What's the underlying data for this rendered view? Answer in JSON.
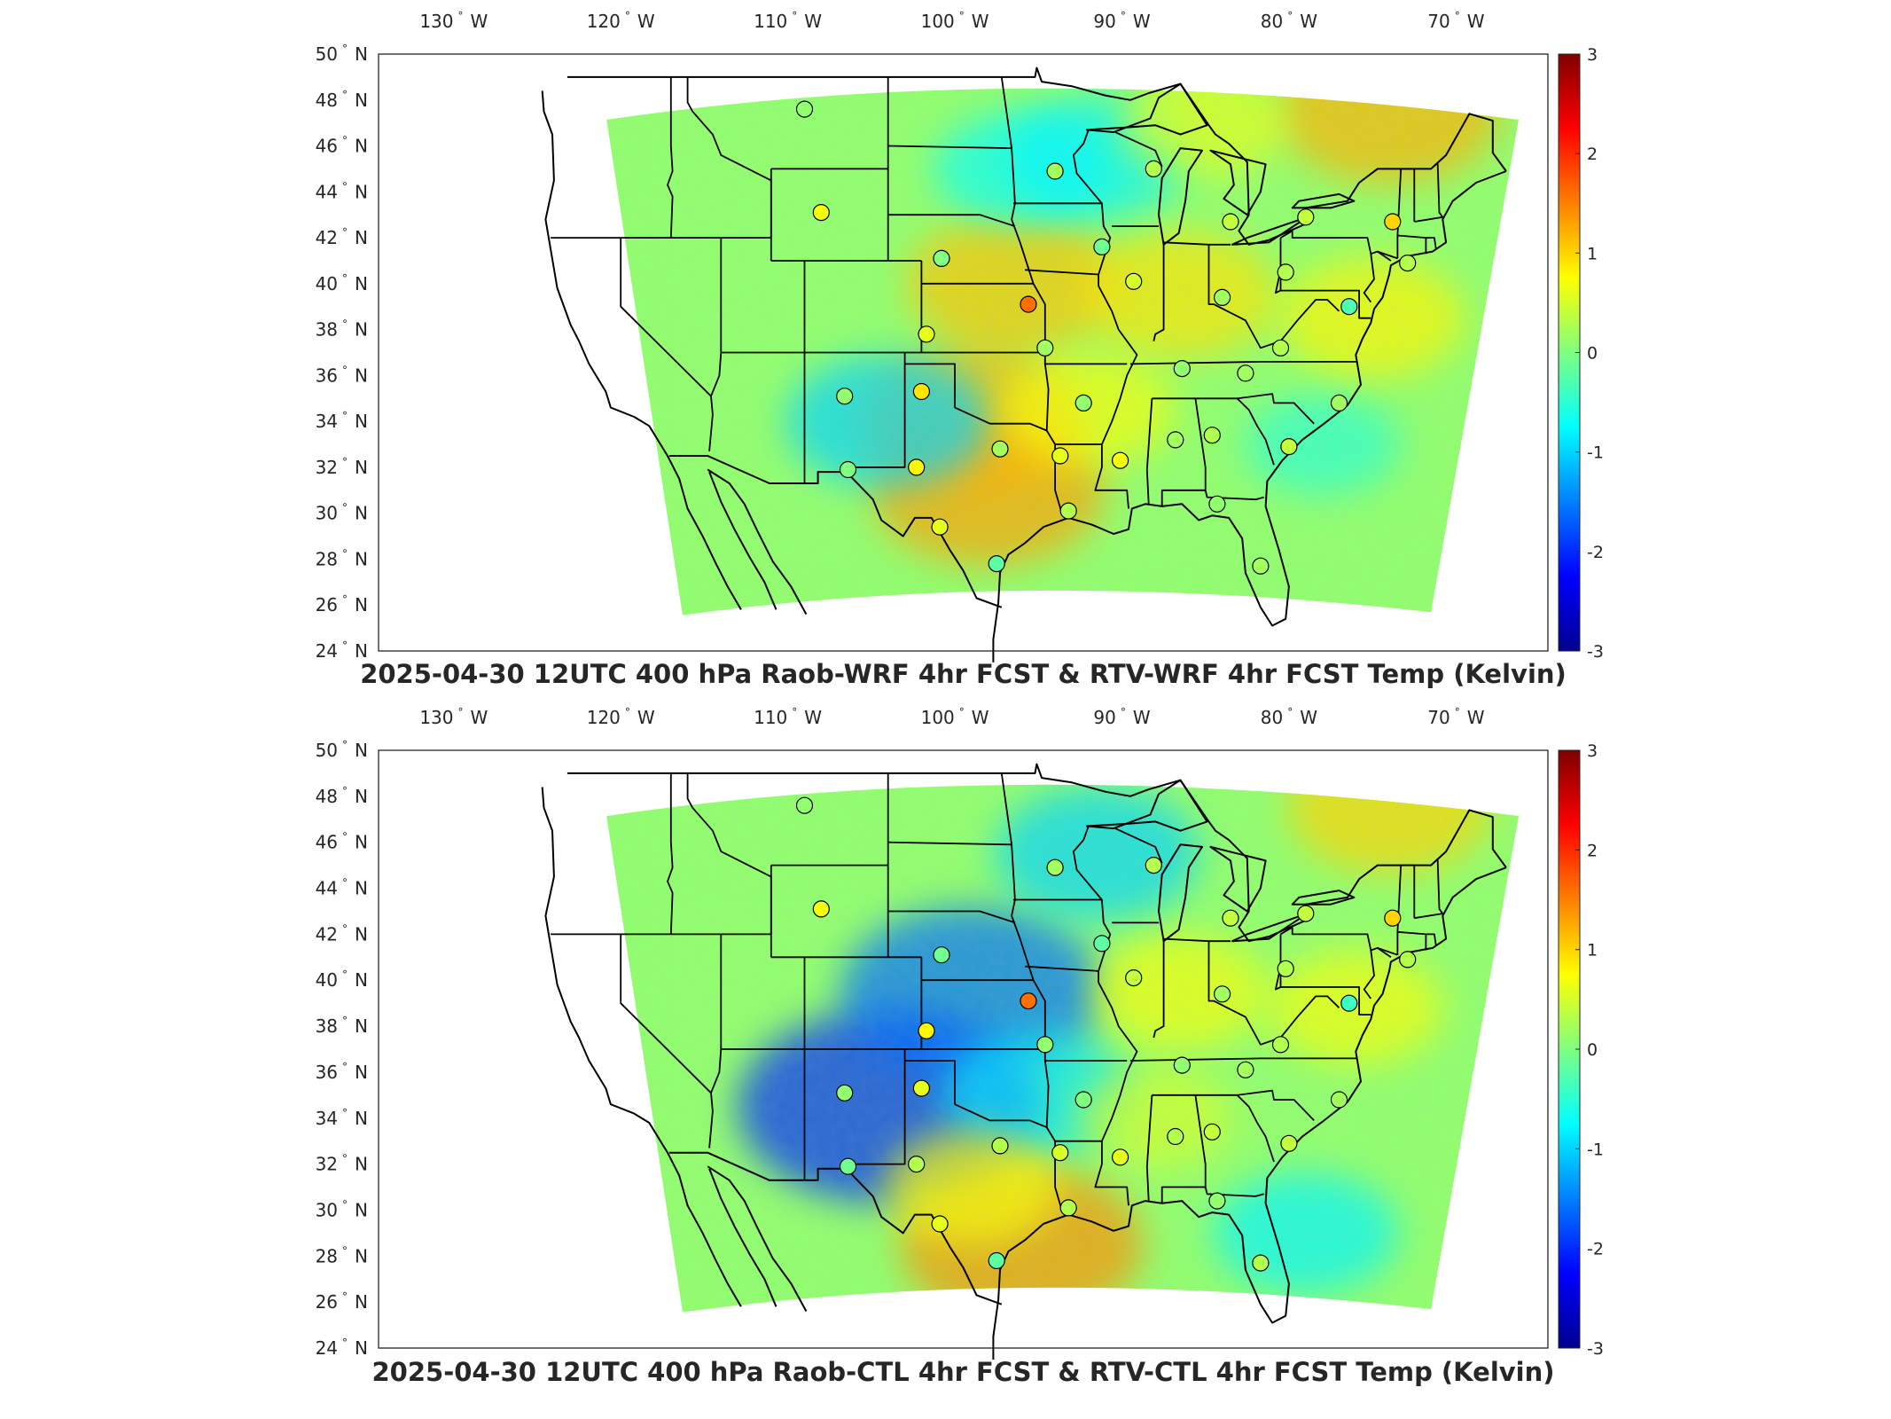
{
  "panels": [
    {
      "title": "2025-04-30 12UTC 400 hPa Raob-WRF 4hr FCST & RTV-WRF 4hr FCST Temp (Kelvin)",
      "lon_ticks": [
        {
          "value": -130,
          "label": "130",
          "hemi": "W"
        },
        {
          "value": -120,
          "label": "120",
          "hemi": "W"
        },
        {
          "value": -110,
          "label": "110",
          "hemi": "W"
        },
        {
          "value": -100,
          "label": "100",
          "hemi": "W"
        },
        {
          "value": -90,
          "label": "90",
          "hemi": "W"
        },
        {
          "value": -80,
          "label": "80",
          "hemi": "W"
        },
        {
          "value": -70,
          "label": "70",
          "hemi": "W"
        }
      ],
      "lat_ticks": [
        {
          "value": 50,
          "label": "50",
          "hemi": "N"
        },
        {
          "value": 48,
          "label": "48",
          "hemi": "N"
        },
        {
          "value": 46,
          "label": "46",
          "hemi": "N"
        },
        {
          "value": 44,
          "label": "44",
          "hemi": "N"
        },
        {
          "value": 42,
          "label": "42",
          "hemi": "N"
        },
        {
          "value": 40,
          "label": "40",
          "hemi": "N"
        },
        {
          "value": 38,
          "label": "38",
          "hemi": "N"
        },
        {
          "value": 36,
          "label": "36",
          "hemi": "N"
        },
        {
          "value": 34,
          "label": "34",
          "hemi": "N"
        },
        {
          "value": 32,
          "label": "32",
          "hemi": "N"
        },
        {
          "value": 30,
          "label": "30",
          "hemi": "N"
        },
        {
          "value": 28,
          "label": "28",
          "hemi": "N"
        },
        {
          "value": 26,
          "label": "26",
          "hemi": "N"
        },
        {
          "value": 24,
          "label": "24",
          "hemi": "N"
        }
      ],
      "colorbar": {
        "min": -3,
        "max": 3,
        "ticks": [
          "3",
          "2",
          "1",
          "0",
          "-1",
          "-2",
          "-3"
        ]
      },
      "anomalies": [
        {
          "lon": -98.0,
          "lat": 31.0,
          "value": 1.3
        },
        {
          "lon": -96.5,
          "lat": 40.0,
          "value": 1.1
        },
        {
          "lon": -99.0,
          "lat": 34.0,
          "value": 1.2
        },
        {
          "lon": -86.5,
          "lat": 39.5,
          "value": 0.9
        },
        {
          "lon": -96.0,
          "lat": 45.0,
          "value": -0.7
        },
        {
          "lon": -91.5,
          "lat": 45.5,
          "value": -0.8
        },
        {
          "lon": -104.0,
          "lat": 34.0,
          "value": -1.0
        },
        {
          "lon": -74.0,
          "lat": 47.5,
          "value": 1.2
        },
        {
          "lon": -78.0,
          "lat": 33.0,
          "value": -0.5
        },
        {
          "lon": -75.0,
          "lat": 38.5,
          "value": 0.8
        },
        {
          "lon": -85.0,
          "lat": 47.0,
          "value": 0.6
        },
        {
          "lon": -92.0,
          "lat": 34.5,
          "value": 0.7
        }
      ],
      "stations": [
        {
          "lon": -109.0,
          "lat": 47.6,
          "value": 0.1
        },
        {
          "lon": -108.0,
          "lat": 43.1,
          "value": 0.7
        },
        {
          "lon": -100.8,
          "lat": 41.1,
          "value": 0.0
        },
        {
          "lon": -101.7,
          "lat": 37.8,
          "value": 0.6
        },
        {
          "lon": -106.6,
          "lat": 35.1,
          "value": 0.1
        },
        {
          "lon": -102.0,
          "lat": 35.3,
          "value": 0.9
        },
        {
          "lon": -106.4,
          "lat": 31.9,
          "value": 0.0
        },
        {
          "lon": -102.3,
          "lat": 32.0,
          "value": 0.8
        },
        {
          "lon": -100.9,
          "lat": 29.4,
          "value": 0.6
        },
        {
          "lon": -97.5,
          "lat": 27.8,
          "value": -0.2
        },
        {
          "lon": -97.3,
          "lat": 32.8,
          "value": 0.2
        },
        {
          "lon": -95.6,
          "lat": 39.1,
          "value": 1.6
        },
        {
          "lon": -94.6,
          "lat": 37.2,
          "value": 0.2
        },
        {
          "lon": -92.3,
          "lat": 34.8,
          "value": 0.1
        },
        {
          "lon": -93.7,
          "lat": 32.5,
          "value": 0.6
        },
        {
          "lon": -93.2,
          "lat": 30.1,
          "value": 0.3
        },
        {
          "lon": -90.1,
          "lat": 32.3,
          "value": 0.7
        },
        {
          "lon": -86.8,
          "lat": 33.2,
          "value": 0.2
        },
        {
          "lon": -84.6,
          "lat": 33.4,
          "value": 0.3
        },
        {
          "lon": -84.3,
          "lat": 30.4,
          "value": 0.1
        },
        {
          "lon": -81.7,
          "lat": 27.7,
          "value": 0.2
        },
        {
          "lon": -89.3,
          "lat": 40.1,
          "value": 0.5
        },
        {
          "lon": -91.2,
          "lat": 41.6,
          "value": -0.1
        },
        {
          "lon": -94.0,
          "lat": 44.9,
          "value": 0.2
        },
        {
          "lon": -88.1,
          "lat": 45.0,
          "value": 0.3
        },
        {
          "lon": -83.5,
          "lat": 42.7,
          "value": 0.4
        },
        {
          "lon": -84.0,
          "lat": 39.4,
          "value": 0.2
        },
        {
          "lon": -80.2,
          "lat": 40.5,
          "value": 0.3
        },
        {
          "lon": -86.4,
          "lat": 36.3,
          "value": 0.1
        },
        {
          "lon": -82.6,
          "lat": 36.1,
          "value": 0.2
        },
        {
          "lon": -80.5,
          "lat": 37.2,
          "value": 0.3
        },
        {
          "lon": -77.0,
          "lat": 34.8,
          "value": 0.2
        },
        {
          "lon": -79.0,
          "lat": 42.9,
          "value": 0.4
        },
        {
          "lon": -73.8,
          "lat": 42.7,
          "value": 1.0
        },
        {
          "lon": -72.9,
          "lat": 40.9,
          "value": 0.3
        },
        {
          "lon": -76.4,
          "lat": 39.0,
          "value": -0.3
        },
        {
          "lon": -80.0,
          "lat": 32.9,
          "value": 0.4
        }
      ]
    },
    {
      "title": "2025-04-30 12UTC 400 hPa Raob-CTL 4hr FCST & RTV-CTL 4hr FCST Temp (Kelvin)",
      "lon_ticks": [
        {
          "value": -130,
          "label": "130",
          "hemi": "W"
        },
        {
          "value": -120,
          "label": "120",
          "hemi": "W"
        },
        {
          "value": -110,
          "label": "110",
          "hemi": "W"
        },
        {
          "value": -100,
          "label": "100",
          "hemi": "W"
        },
        {
          "value": -90,
          "label": "90",
          "hemi": "W"
        },
        {
          "value": -80,
          "label": "80",
          "hemi": "W"
        },
        {
          "value": -70,
          "label": "70",
          "hemi": "W"
        }
      ],
      "lat_ticks": [
        {
          "value": 50,
          "label": "50",
          "hemi": "N"
        },
        {
          "value": 48,
          "label": "48",
          "hemi": "N"
        },
        {
          "value": 46,
          "label": "46",
          "hemi": "N"
        },
        {
          "value": 44,
          "label": "44",
          "hemi": "N"
        },
        {
          "value": 42,
          "label": "42",
          "hemi": "N"
        },
        {
          "value": 40,
          "label": "40",
          "hemi": "N"
        },
        {
          "value": 38,
          "label": "38",
          "hemi": "N"
        },
        {
          "value": 36,
          "label": "36",
          "hemi": "N"
        },
        {
          "value": 34,
          "label": "34",
          "hemi": "N"
        },
        {
          "value": 32,
          "label": "32",
          "hemi": "N"
        },
        {
          "value": 30,
          "label": "30",
          "hemi": "N"
        },
        {
          "value": 28,
          "label": "28",
          "hemi": "N"
        },
        {
          "value": 26,
          "label": "26",
          "hemi": "N"
        },
        {
          "value": 24,
          "label": "24",
          "hemi": "N"
        }
      ],
      "colorbar": {
        "min": -3,
        "max": 3,
        "ticks": [
          "3",
          "2",
          "1",
          "0",
          "-1",
          "-2",
          "-3"
        ]
      },
      "anomalies": [
        {
          "lon": -104.0,
          "lat": 34.5,
          "value": -2.0
        },
        {
          "lon": -99.0,
          "lat": 39.5,
          "value": -1.6
        },
        {
          "lon": -95.0,
          "lat": 35.0,
          "value": -0.9
        },
        {
          "lon": -96.0,
          "lat": 28.5,
          "value": 1.4
        },
        {
          "lon": -99.0,
          "lat": 31.0,
          "value": 0.7
        },
        {
          "lon": -86.5,
          "lat": 39.5,
          "value": 0.7
        },
        {
          "lon": -91.5,
          "lat": 45.5,
          "value": -1.0
        },
        {
          "lon": -79.0,
          "lat": 29.0,
          "value": -0.8
        },
        {
          "lon": -74.0,
          "lat": 47.5,
          "value": 1.0
        },
        {
          "lon": -76.0,
          "lat": 38.8,
          "value": 0.7
        },
        {
          "lon": -88.0,
          "lat": 34.0,
          "value": 0.5
        }
      ],
      "stations": [
        {
          "lon": -109.0,
          "lat": 47.6,
          "value": 0.1
        },
        {
          "lon": -108.0,
          "lat": 43.1,
          "value": 0.7
        },
        {
          "lon": -100.8,
          "lat": 41.1,
          "value": -0.1
        },
        {
          "lon": -101.7,
          "lat": 37.8,
          "value": 0.8
        },
        {
          "lon": -106.6,
          "lat": 35.1,
          "value": 0.1
        },
        {
          "lon": -102.0,
          "lat": 35.3,
          "value": 0.6
        },
        {
          "lon": -106.4,
          "lat": 31.9,
          "value": -0.1
        },
        {
          "lon": -102.3,
          "lat": 32.0,
          "value": 0.3
        },
        {
          "lon": -100.9,
          "lat": 29.4,
          "value": 0.6
        },
        {
          "lon": -97.5,
          "lat": 27.8,
          "value": -0.2
        },
        {
          "lon": -97.3,
          "lat": 32.8,
          "value": 0.3
        },
        {
          "lon": -95.6,
          "lat": 39.1,
          "value": 1.6
        },
        {
          "lon": -94.6,
          "lat": 37.2,
          "value": 0.1
        },
        {
          "lon": -92.3,
          "lat": 34.8,
          "value": 0.0
        },
        {
          "lon": -93.7,
          "lat": 32.5,
          "value": 0.5
        },
        {
          "lon": -93.2,
          "lat": 30.1,
          "value": 0.3
        },
        {
          "lon": -90.1,
          "lat": 32.3,
          "value": 0.6
        },
        {
          "lon": -86.8,
          "lat": 33.2,
          "value": 0.3
        },
        {
          "lon": -84.6,
          "lat": 33.4,
          "value": 0.4
        },
        {
          "lon": -84.3,
          "lat": 30.4,
          "value": 0.1
        },
        {
          "lon": -81.7,
          "lat": 27.7,
          "value": 0.3
        },
        {
          "lon": -89.3,
          "lat": 40.1,
          "value": 0.4
        },
        {
          "lon": -91.2,
          "lat": 41.6,
          "value": -0.2
        },
        {
          "lon": -94.0,
          "lat": 44.9,
          "value": 0.2
        },
        {
          "lon": -88.1,
          "lat": 45.0,
          "value": 0.3
        },
        {
          "lon": -83.5,
          "lat": 42.7,
          "value": 0.4
        },
        {
          "lon": -84.0,
          "lat": 39.4,
          "value": 0.2
        },
        {
          "lon": -80.2,
          "lat": 40.5,
          "value": 0.3
        },
        {
          "lon": -86.4,
          "lat": 36.3,
          "value": 0.1
        },
        {
          "lon": -82.6,
          "lat": 36.1,
          "value": 0.2
        },
        {
          "lon": -80.5,
          "lat": 37.2,
          "value": 0.3
        },
        {
          "lon": -77.0,
          "lat": 34.8,
          "value": 0.2
        },
        {
          "lon": -79.0,
          "lat": 42.9,
          "value": 0.4
        },
        {
          "lon": -73.8,
          "lat": 42.7,
          "value": 1.0
        },
        {
          "lon": -72.9,
          "lat": 40.9,
          "value": 0.3
        },
        {
          "lon": -76.4,
          "lat": 39.0,
          "value": -0.4
        },
        {
          "lon": -80.0,
          "lat": 32.9,
          "value": 0.4
        }
      ]
    }
  ]
}
